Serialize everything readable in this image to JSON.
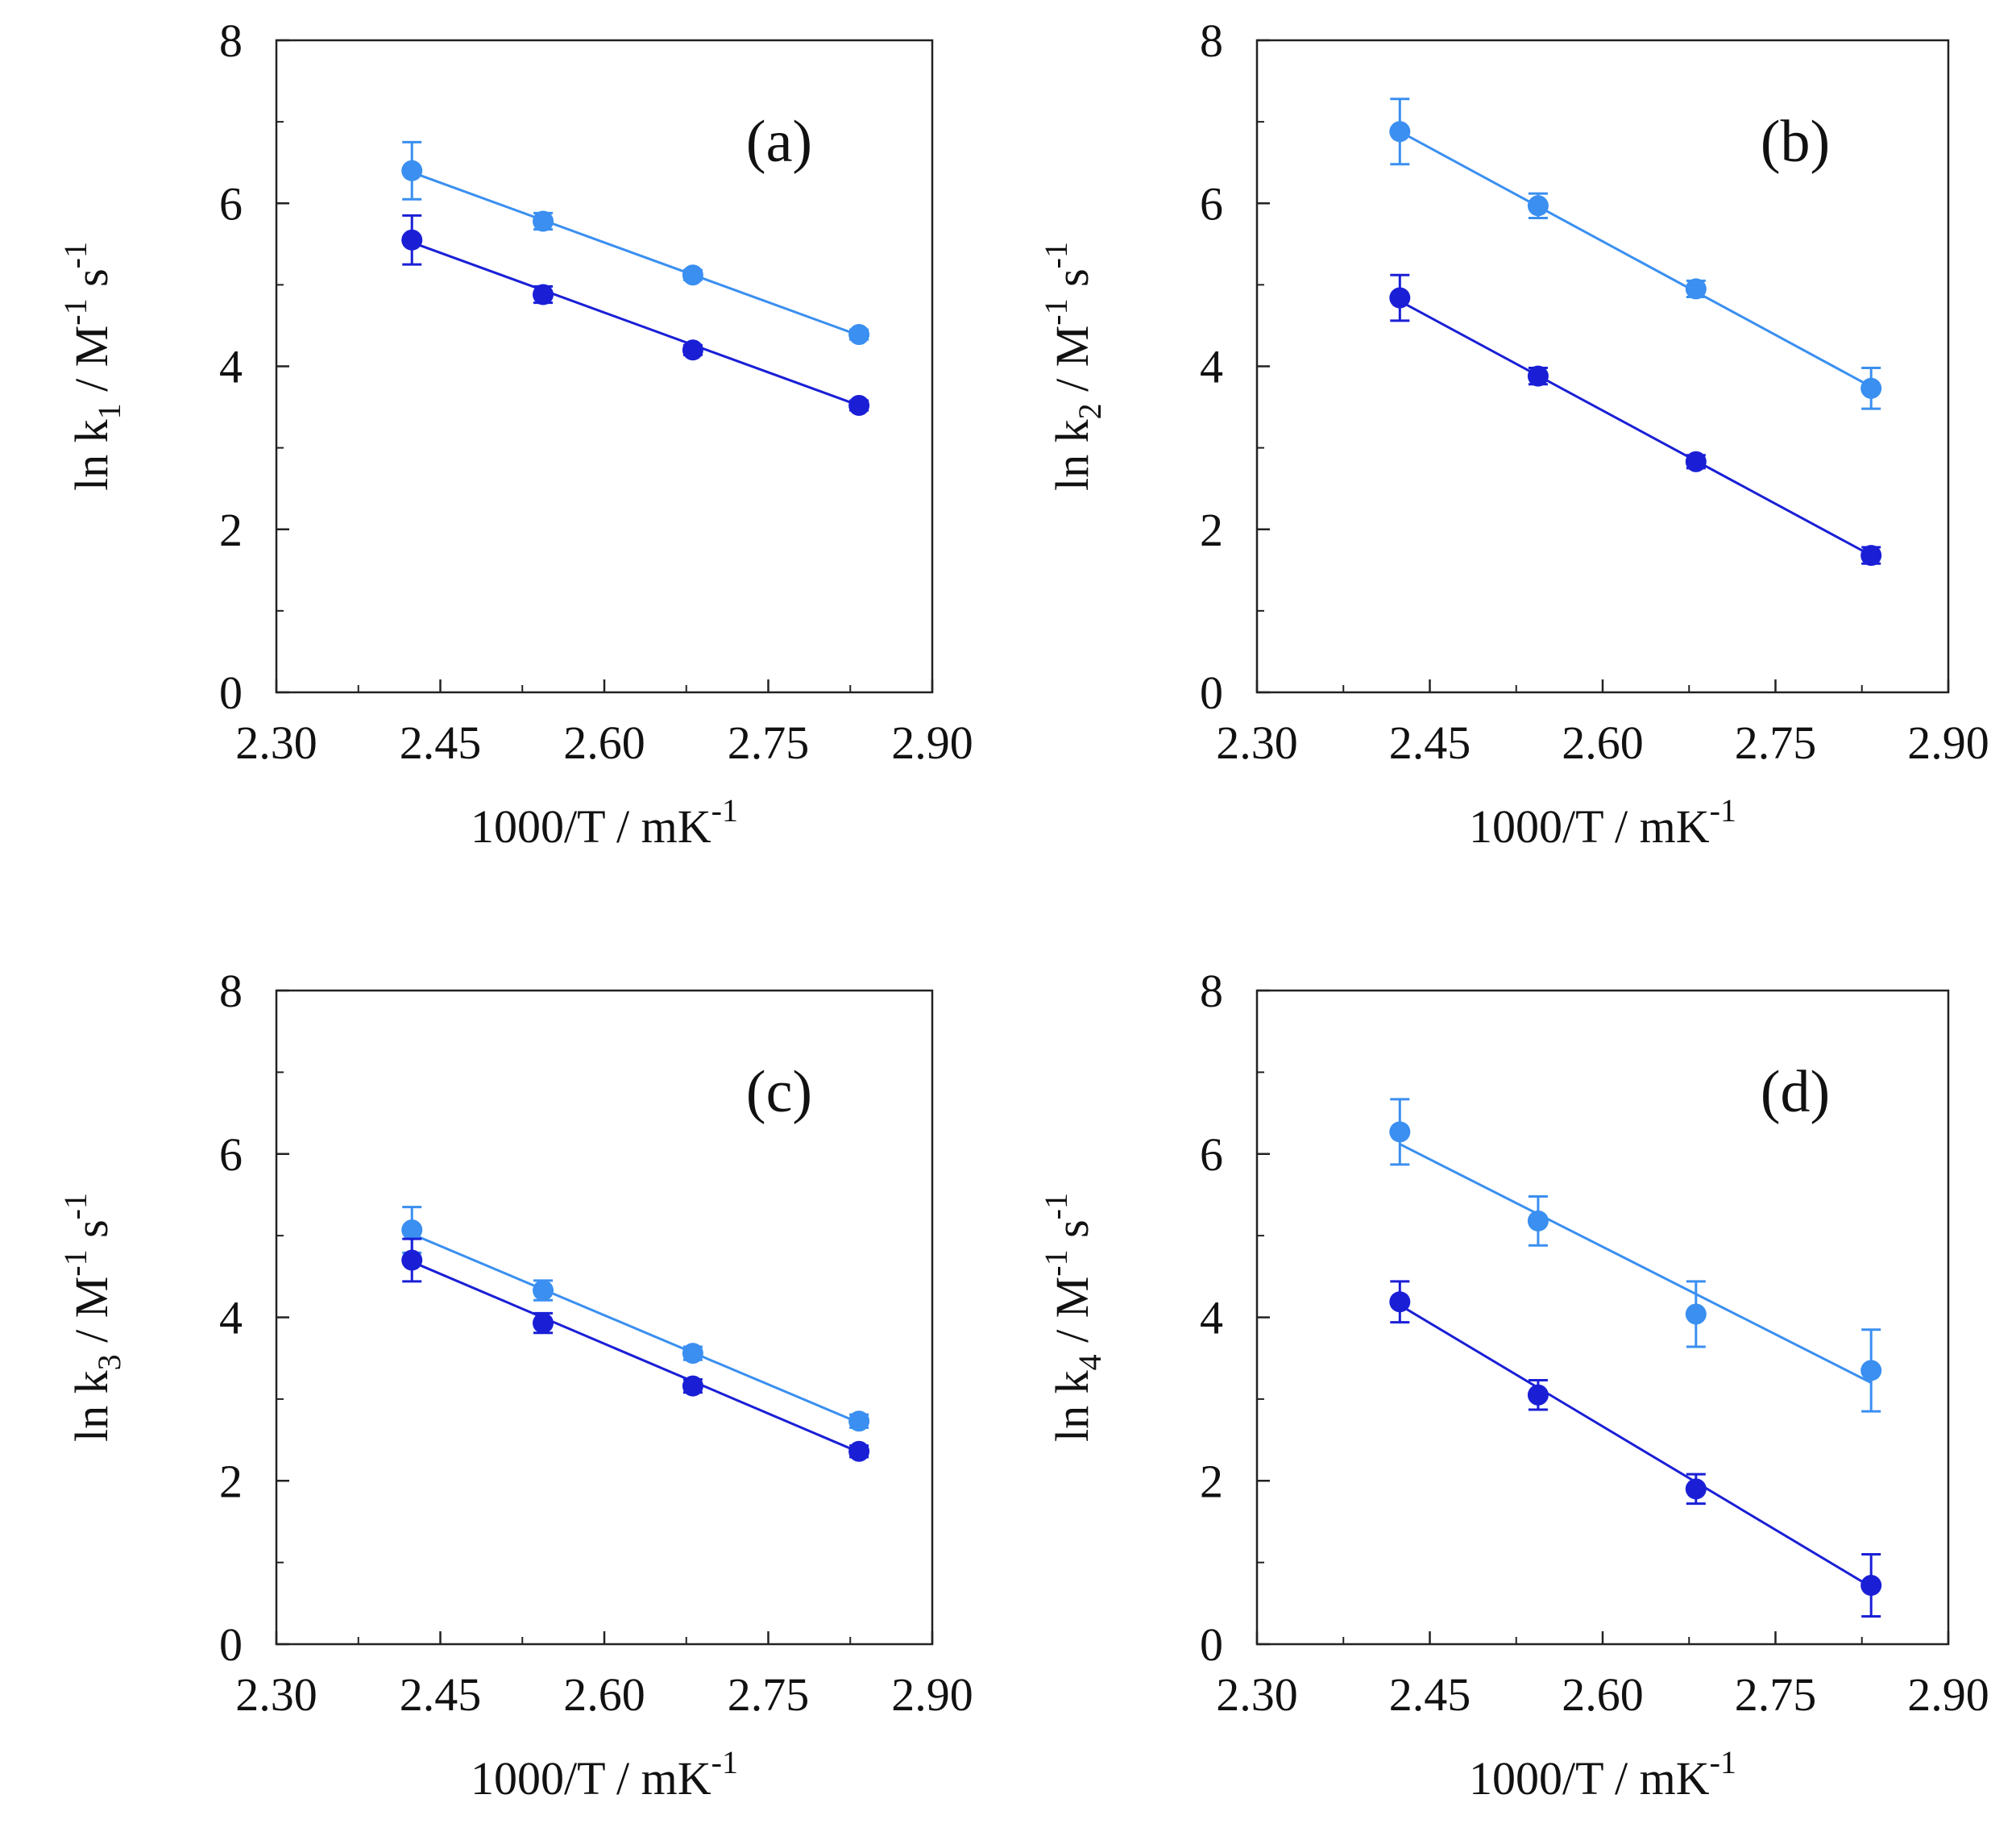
{
  "colors": {
    "light": "#3a8ff0",
    "dark": "#1a1fd6",
    "frame": "#222222"
  },
  "chart_data": [
    {
      "type": "scatter",
      "tag": "(a)",
      "xlabel": {
        "main": "1000/T / mK",
        "sup": "-1"
      },
      "ylabel": {
        "pre": "ln k",
        "sub": "1",
        "mid": " / M",
        "sup1": "-1",
        "mid2": " s",
        "sup2": "-1"
      },
      "xlim": [
        2.3,
        2.9
      ],
      "ylim": [
        0,
        8
      ],
      "xticks": [
        "2.30",
        "2.45",
        "2.60",
        "2.75",
        "2.90"
      ],
      "yticks": [
        "0",
        "2",
        "4",
        "6",
        "8"
      ],
      "x": [
        2.424,
        2.544,
        2.681,
        2.833
      ],
      "series": [
        {
          "name": "upper",
          "color": "light",
          "values": [
            6.4,
            5.78,
            5.12,
            4.39
          ],
          "errors": [
            0.35,
            0.1,
            0.06,
            0.06
          ],
          "fit": [
            6.38,
            4.38
          ]
        },
        {
          "name": "lower",
          "color": "dark",
          "values": [
            5.55,
            4.88,
            4.2,
            3.52
          ],
          "errors": [
            0.3,
            0.1,
            0.06,
            0.06
          ],
          "fit": [
            5.52,
            3.52
          ]
        }
      ]
    },
    {
      "type": "scatter",
      "tag": "(b)",
      "xlabel": {
        "main": "1000/T / mK",
        "sup": "-1"
      },
      "ylabel": {
        "pre": "ln k",
        "sub": "2",
        "mid": " / M",
        "sup1": "-1",
        "mid2": " s",
        "sup2": "-1"
      },
      "xlim": [
        2.3,
        2.9
      ],
      "ylim": [
        0,
        8
      ],
      "xticks": [
        "2.30",
        "2.45",
        "2.60",
        "2.75",
        "2.90"
      ],
      "yticks": [
        "0",
        "2",
        "4",
        "6",
        "8"
      ],
      "x": [
        2.424,
        2.544,
        2.681,
        2.833
      ],
      "series": [
        {
          "name": "upper",
          "color": "light",
          "values": [
            6.88,
            5.97,
            4.95,
            3.73
          ],
          "errors": [
            0.4,
            0.15,
            0.1,
            0.25
          ],
          "fit": [
            6.88,
            3.75
          ]
        },
        {
          "name": "lower",
          "color": "dark",
          "values": [
            4.84,
            3.88,
            2.83,
            1.68
          ],
          "errors": [
            0.28,
            0.1,
            0.08,
            0.1
          ],
          "fit": [
            4.8,
            1.68
          ]
        }
      ]
    },
    {
      "type": "scatter",
      "tag": "(c)",
      "xlabel": {
        "main": "1000/T / mK",
        "sup": "-1"
      },
      "ylabel": {
        "pre": "ln k",
        "sub": "3",
        "mid": " / M",
        "sup1": "-1",
        "mid2": " s",
        "sup2": "-1"
      },
      "xlim": [
        2.3,
        2.9
      ],
      "ylim": [
        0,
        8
      ],
      "xticks": [
        "2.30",
        "2.45",
        "2.60",
        "2.75",
        "2.90"
      ],
      "yticks": [
        "0",
        "2",
        "4",
        "6",
        "8"
      ],
      "x": [
        2.424,
        2.544,
        2.681,
        2.833
      ],
      "series": [
        {
          "name": "upper",
          "color": "light",
          "values": [
            5.07,
            4.33,
            3.56,
            2.73
          ],
          "errors": [
            0.28,
            0.12,
            0.08,
            0.08
          ],
          "fit": [
            5.02,
            2.71
          ]
        },
        {
          "name": "lower",
          "color": "dark",
          "values": [
            4.7,
            3.93,
            3.16,
            2.36
          ],
          "errors": [
            0.26,
            0.12,
            0.08,
            0.07
          ],
          "fit": [
            4.68,
            2.35
          ]
        }
      ]
    },
    {
      "type": "scatter",
      "tag": "(d)",
      "xlabel": {
        "main": "1000/T / mK",
        "sup": "-1"
      },
      "ylabel": {
        "pre": "ln k",
        "sub": "4",
        "mid": " / M",
        "sup1": "-1",
        "mid2": " s",
        "sup2": "-1"
      },
      "xlim": [
        2.3,
        2.9
      ],
      "ylim": [
        0,
        8
      ],
      "xticks": [
        "2.30",
        "2.45",
        "2.60",
        "2.75",
        "2.90"
      ],
      "yticks": [
        "0",
        "2",
        "4",
        "6",
        "8"
      ],
      "x": [
        2.424,
        2.544,
        2.681,
        2.833
      ],
      "series": [
        {
          "name": "upper",
          "color": "light",
          "values": [
            6.27,
            5.18,
            4.04,
            3.35
          ],
          "errors": [
            0.4,
            0.3,
            0.4,
            0.5
          ],
          "fit": [
            6.12,
            3.2
          ]
        },
        {
          "name": "lower",
          "color": "dark",
          "values": [
            4.19,
            3.05,
            1.9,
            0.72
          ],
          "errors": [
            0.25,
            0.18,
            0.18,
            0.38
          ],
          "fit": [
            4.15,
            0.7
          ]
        }
      ]
    }
  ]
}
